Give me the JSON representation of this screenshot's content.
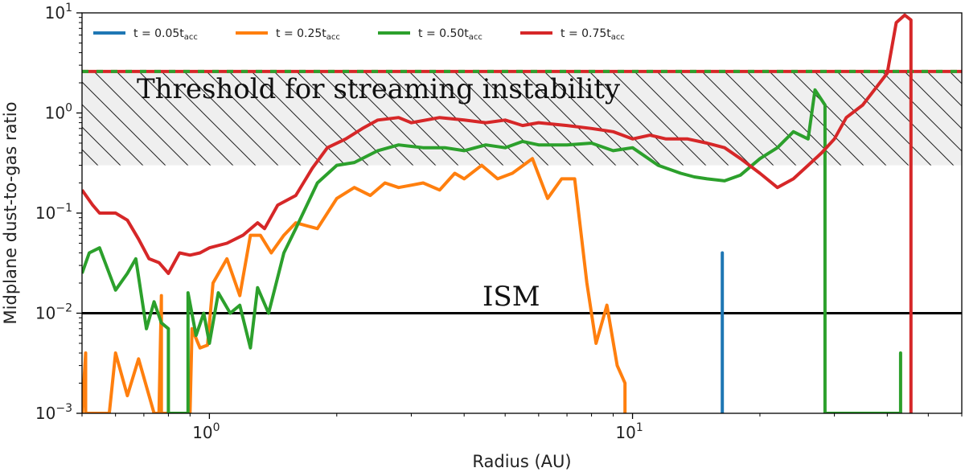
{
  "chart_data": {
    "type": "line",
    "xscale": "log",
    "yscale": "log",
    "xlim": [
      0.5,
      60
    ],
    "ylim": [
      0.001,
      10
    ],
    "xlabel": "Radius (AU)",
    "ylabel": "Midplane dust-to-gas ratio",
    "x_ticks": [
      {
        "value": 1,
        "base": "10",
        "exp": "0"
      },
      {
        "value": 10,
        "base": "10",
        "exp": "1"
      }
    ],
    "y_ticks": [
      {
        "value": 0.001,
        "base": "10",
        "exp": "−3"
      },
      {
        "value": 0.01,
        "base": "10",
        "exp": "−2"
      },
      {
        "value": 0.1,
        "base": "10",
        "exp": "−1"
      },
      {
        "value": 1,
        "base": "10",
        "exp": "0"
      },
      {
        "value": 10,
        "base": "10",
        "exp": "1"
      }
    ],
    "streaming_band": {
      "low": 0.3,
      "high": 2.6,
      "label": "Threshold for streaming instability"
    },
    "ism_line": {
      "value": 0.01,
      "label": "ISM"
    },
    "series": [
      {
        "name": "t = 0.05t_acc",
        "legend_main": "t = 0.05t",
        "legend_sub": "acc",
        "color": "#1f77b4",
        "points": [
          [
            16.3,
            0.001
          ],
          [
            16.3,
            0.04
          ],
          [
            16.3,
            0.001
          ]
        ]
      },
      {
        "name": "t = 0.25t_acc",
        "legend_main": "t = 0.25t",
        "legend_sub": "acc",
        "color": "#ff7f0e",
        "points": [
          [
            0.5,
            0.001
          ],
          [
            0.51,
            0.004
          ],
          [
            0.51,
            0.001
          ],
          [
            0.58,
            0.001
          ],
          [
            0.6,
            0.004
          ],
          [
            0.64,
            0.0015
          ],
          [
            0.68,
            0.0035
          ],
          [
            0.74,
            0.001
          ],
          [
            0.76,
            0.001
          ],
          [
            0.77,
            0.015
          ],
          [
            0.77,
            0.001
          ],
          [
            0.9,
            0.001
          ],
          [
            0.91,
            0.007
          ],
          [
            0.95,
            0.0045
          ],
          [
            0.99,
            0.0048
          ],
          [
            1.02,
            0.02
          ],
          [
            1.1,
            0.035
          ],
          [
            1.18,
            0.015
          ],
          [
            1.25,
            0.06
          ],
          [
            1.32,
            0.06
          ],
          [
            1.4,
            0.04
          ],
          [
            1.5,
            0.06
          ],
          [
            1.6,
            0.08
          ],
          [
            1.8,
            0.07
          ],
          [
            2.0,
            0.14
          ],
          [
            2.2,
            0.18
          ],
          [
            2.4,
            0.15
          ],
          [
            2.6,
            0.2
          ],
          [
            2.8,
            0.18
          ],
          [
            3.0,
            0.19
          ],
          [
            3.2,
            0.2
          ],
          [
            3.5,
            0.17
          ],
          [
            3.8,
            0.25
          ],
          [
            4.0,
            0.22
          ],
          [
            4.4,
            0.3
          ],
          [
            4.8,
            0.22
          ],
          [
            5.2,
            0.25
          ],
          [
            5.8,
            0.35
          ],
          [
            6.3,
            0.14
          ],
          [
            6.8,
            0.22
          ],
          [
            7.3,
            0.22
          ],
          [
            7.8,
            0.02
          ],
          [
            8.2,
            0.005
          ],
          [
            8.7,
            0.012
          ],
          [
            9.2,
            0.003
          ],
          [
            9.6,
            0.002
          ],
          [
            9.6,
            0.001
          ]
        ]
      },
      {
        "name": "t = 0.50t_acc",
        "legend_main": "t = 0.50t",
        "legend_sub": "acc",
        "color": "#2ca02c",
        "points": [
          [
            0.5,
            0.025
          ],
          [
            0.52,
            0.04
          ],
          [
            0.55,
            0.045
          ],
          [
            0.6,
            0.017
          ],
          [
            0.64,
            0.025
          ],
          [
            0.67,
            0.035
          ],
          [
            0.71,
            0.007
          ],
          [
            0.74,
            0.013
          ],
          [
            0.77,
            0.008
          ],
          [
            0.8,
            0.007
          ],
          [
            0.8,
            0.001
          ],
          [
            0.89,
            0.001
          ],
          [
            0.89,
            0.016
          ],
          [
            0.93,
            0.006
          ],
          [
            0.97,
            0.01
          ],
          [
            1.0,
            0.005
          ],
          [
            1.05,
            0.016
          ],
          [
            1.12,
            0.01
          ],
          [
            1.18,
            0.012
          ],
          [
            1.25,
            0.0045
          ],
          [
            1.3,
            0.018
          ],
          [
            1.38,
            0.01
          ],
          [
            1.5,
            0.04
          ],
          [
            1.6,
            0.07
          ],
          [
            1.8,
            0.2
          ],
          [
            2.0,
            0.3
          ],
          [
            2.2,
            0.32
          ],
          [
            2.5,
            0.42
          ],
          [
            2.8,
            0.48
          ],
          [
            3.2,
            0.45
          ],
          [
            3.6,
            0.45
          ],
          [
            4.0,
            0.42
          ],
          [
            4.5,
            0.48
          ],
          [
            5.0,
            0.45
          ],
          [
            5.5,
            0.52
          ],
          [
            6.0,
            0.48
          ],
          [
            7.0,
            0.48
          ],
          [
            8.0,
            0.5
          ],
          [
            9.0,
            0.42
          ],
          [
            10.0,
            0.45
          ],
          [
            11.5,
            0.3
          ],
          [
            13.0,
            0.25
          ],
          [
            14.0,
            0.23
          ],
          [
            15.0,
            0.22
          ],
          [
            16.5,
            0.21
          ],
          [
            18.0,
            0.24
          ],
          [
            20.0,
            0.35
          ],
          [
            22.0,
            0.45
          ],
          [
            24.0,
            0.65
          ],
          [
            26.0,
            0.55
          ],
          [
            27.0,
            1.7
          ],
          [
            28.5,
            1.2
          ],
          [
            28.5,
            0.001
          ],
          [
            43.0,
            0.001
          ],
          [
            43.0,
            0.004
          ],
          [
            43.0,
            0.001
          ]
        ]
      },
      {
        "name": "t = 0.75t_acc",
        "legend_main": "t = 0.75t",
        "legend_sub": "acc",
        "color": "#d62728",
        "points": [
          [
            0.5,
            0.17
          ],
          [
            0.53,
            0.12
          ],
          [
            0.55,
            0.1
          ],
          [
            0.6,
            0.1
          ],
          [
            0.64,
            0.085
          ],
          [
            0.68,
            0.055
          ],
          [
            0.72,
            0.035
          ],
          [
            0.76,
            0.032
          ],
          [
            0.8,
            0.025
          ],
          [
            0.85,
            0.04
          ],
          [
            0.9,
            0.038
          ],
          [
            0.95,
            0.04
          ],
          [
            1.0,
            0.045
          ],
          [
            1.1,
            0.05
          ],
          [
            1.2,
            0.06
          ],
          [
            1.3,
            0.08
          ],
          [
            1.35,
            0.07
          ],
          [
            1.45,
            0.12
          ],
          [
            1.6,
            0.15
          ],
          [
            1.75,
            0.28
          ],
          [
            1.9,
            0.45
          ],
          [
            2.1,
            0.55
          ],
          [
            2.3,
            0.7
          ],
          [
            2.5,
            0.85
          ],
          [
            2.8,
            0.9
          ],
          [
            3.0,
            0.8
          ],
          [
            3.5,
            0.9
          ],
          [
            4.0,
            0.85
          ],
          [
            4.5,
            0.8
          ],
          [
            5.0,
            0.85
          ],
          [
            5.5,
            0.75
          ],
          [
            6.0,
            0.8
          ],
          [
            7.0,
            0.75
          ],
          [
            8.0,
            0.7
          ],
          [
            9.0,
            0.65
          ],
          [
            10.0,
            0.55
          ],
          [
            11.0,
            0.6
          ],
          [
            12.0,
            0.55
          ],
          [
            13.5,
            0.55
          ],
          [
            15.0,
            0.5
          ],
          [
            16.5,
            0.45
          ],
          [
            18.0,
            0.35
          ],
          [
            20.0,
            0.25
          ],
          [
            22.0,
            0.18
          ],
          [
            24.0,
            0.22
          ],
          [
            26.0,
            0.3
          ],
          [
            28.0,
            0.4
          ],
          [
            30.0,
            0.55
          ],
          [
            32.0,
            0.9
          ],
          [
            35.0,
            1.2
          ],
          [
            40.0,
            2.5
          ],
          [
            42.0,
            8.0
          ],
          [
            44.0,
            9.5
          ],
          [
            45.5,
            8.5
          ],
          [
            45.5,
            0.001
          ]
        ]
      }
    ]
  }
}
